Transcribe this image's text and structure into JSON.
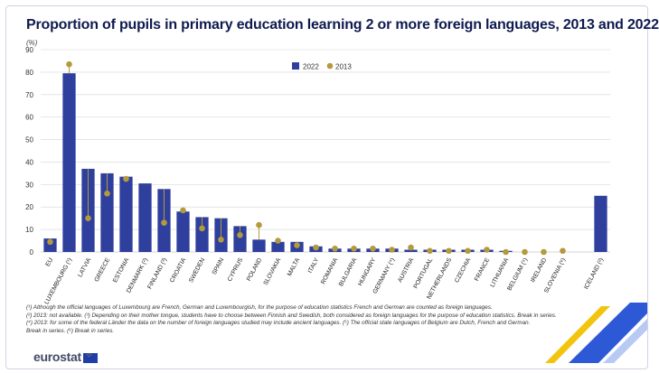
{
  "title": "Proportion of pupils in primary education learning 2 or more foreign languages, 2013 and 2022",
  "unit": "(%)",
  "footnotes": [
    "(¹) Although the official languages of Luxembourg are French, German and Luxembourgish, for the purpose of education statistics French and German are counted as foreign languages.",
    "(²) 2013: not available. (³) Depending on their mother tongue, students have to choose between Finnish and Swedish, both considered as foreign languages for the purpose of education statistics. Break in series.",
    "(⁴) 2013: for some of the federal Länder the data on the number of foreign languages studied may include ancient languages. (⁵) The official state languages of Belgium are Dutch, French and German.",
    "Break in series. (⁶) Break in series."
  ],
  "logo": "eurostat",
  "colors": {
    "bar": "#2e3f9e",
    "dot": "#b39a3c",
    "title": "#0e1a4f",
    "grid": "#d6d6d6"
  },
  "chart_data": {
    "type": "bar",
    "ylim": [
      0,
      90
    ],
    "yticks": [
      0,
      10,
      20,
      30,
      40,
      50,
      60,
      70,
      80,
      90
    ],
    "legend": [
      "2022",
      "2013"
    ],
    "legend_position": "top-center",
    "categories": [
      "EU",
      "LUXEMBOURG (¹)",
      "LATVIA",
      "GREECE",
      "ESTONIA",
      "DENMARK (²)",
      "FINLAND (³)",
      "CROATIA",
      "SWEDEN",
      "SPAIN",
      "CYPRUS",
      "POLAND",
      "SLOVAKIA",
      "MALTA",
      "ITALY",
      "ROMANIA",
      "BULGARIA",
      "HUNGARY",
      "GERMANY (⁴)",
      "AUSTRIA",
      "PORTUGAL",
      "NETHERLANDS",
      "CZECHIA",
      "FRANCE",
      "LITHUANIA",
      "BELGIUM (⁵)",
      "IRELAND",
      "SLOVENIA (⁶)",
      "",
      "ICELAND (²)"
    ],
    "series": [
      {
        "name": "2022",
        "values": [
          6,
          79.5,
          37,
          35,
          33.5,
          30.5,
          28,
          18,
          15.5,
          15,
          11.5,
          5.5,
          4.5,
          4.5,
          2.5,
          1.5,
          1.5,
          1.5,
          1.5,
          1,
          1,
          1,
          1,
          1,
          0.5,
          0,
          0,
          0,
          null,
          25
        ]
      },
      {
        "name": "2013",
        "values": [
          4.5,
          83.5,
          15,
          26,
          32.5,
          null,
          13,
          18.5,
          10.5,
          5.5,
          7.5,
          12,
          5,
          3,
          2,
          1.5,
          1.5,
          1.5,
          1,
          2,
          0.5,
          0.5,
          0.5,
          1,
          0,
          0,
          0,
          0.5,
          null,
          null
        ]
      }
    ]
  }
}
